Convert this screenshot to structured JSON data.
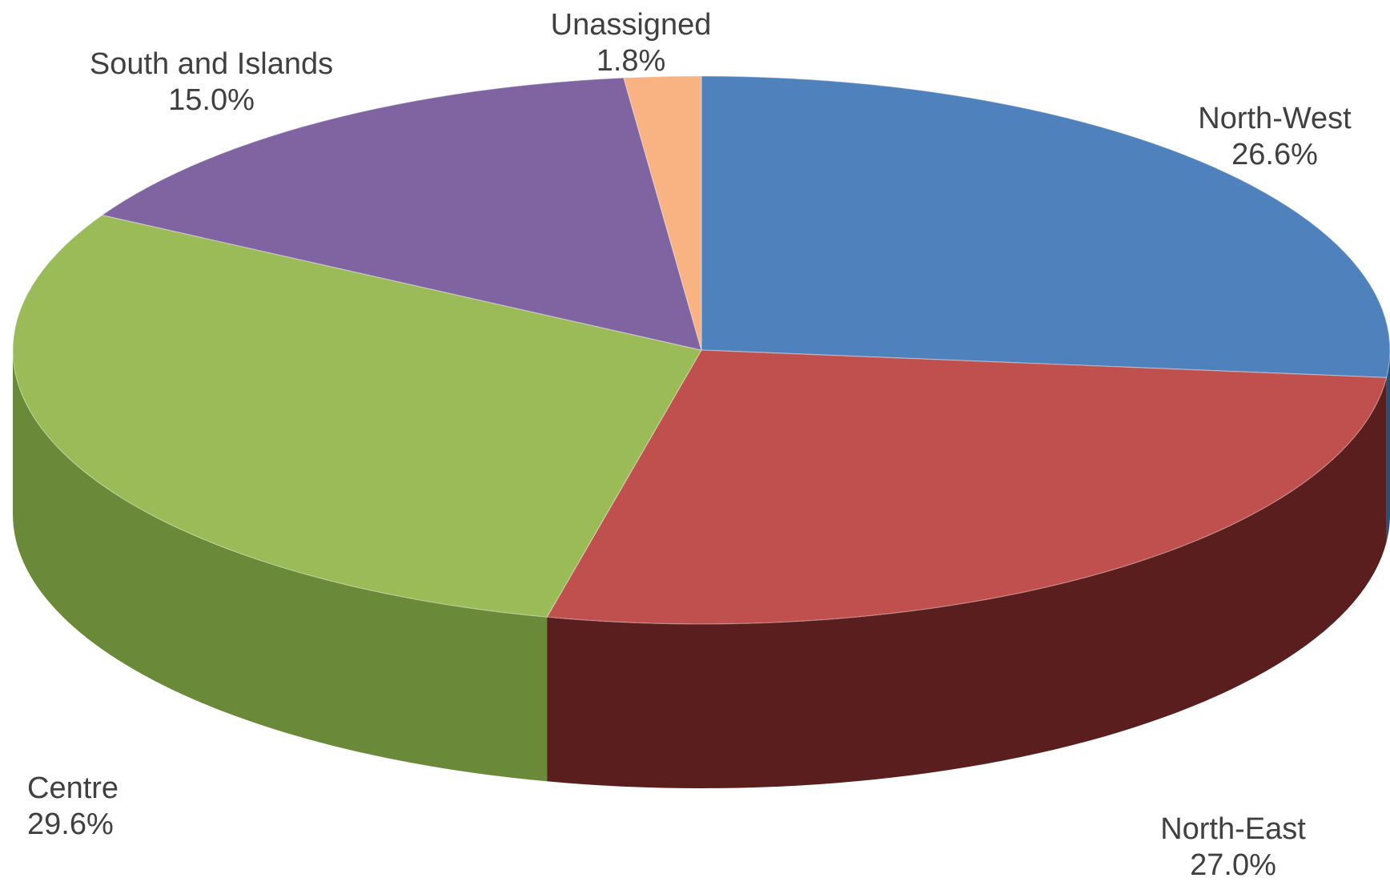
{
  "chart_data": {
    "type": "pie",
    "style": "3d-exploded-none",
    "start_angle_clock": "12 o'clock",
    "direction": "clockwise",
    "slices": [
      {
        "label": "North-West",
        "value": 26.6,
        "value_label": "26.6%",
        "color": "#4F81BD",
        "side_color": "#2C4D75"
      },
      {
        "label": "North-East",
        "value": 27.0,
        "value_label": "27.0%",
        "color": "#C0504D",
        "side_color": "#5A1E1E"
      },
      {
        "label": "Centre",
        "value": 29.6,
        "value_label": "29.6%",
        "color": "#9BBB59",
        "side_color": "#6A8A3A"
      },
      {
        "label": "South and Islands",
        "value": 15.0,
        "value_label": "15.0%",
        "color": "#8064A2",
        "side_color": "#4E3B66"
      },
      {
        "label": "Unassigned",
        "value": 1.8,
        "value_label": "1.8%",
        "color": "#F9B382",
        "side_color": "#C57F4E"
      }
    ]
  }
}
